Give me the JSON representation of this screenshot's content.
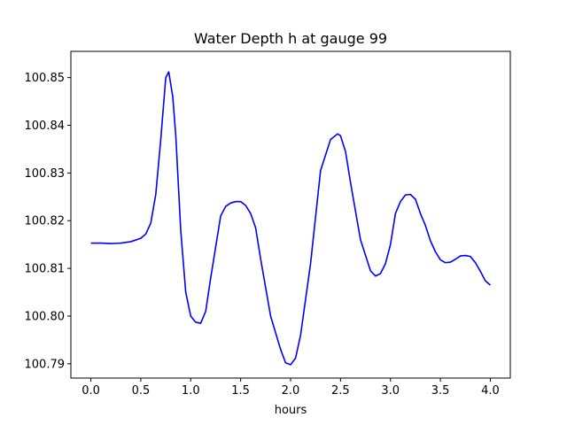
{
  "chart_data": {
    "type": "line",
    "title": "Water Depth h at gauge 99",
    "xlabel": "hours",
    "ylabel": "",
    "xlim": [
      -0.2,
      4.2
    ],
    "ylim": [
      100.787,
      100.8555
    ],
    "xticks": [
      0.0,
      0.5,
      1.0,
      1.5,
      2.0,
      2.5,
      3.0,
      3.5,
      4.0
    ],
    "xtick_labels": [
      "0.0",
      "0.5",
      "1.0",
      "1.5",
      "2.0",
      "2.5",
      "3.0",
      "3.5",
      "4.0"
    ],
    "yticks": [
      100.79,
      100.8,
      100.81,
      100.82,
      100.83,
      100.84,
      100.85
    ],
    "ytick_labels": [
      "100.79",
      "100.80",
      "100.81",
      "100.82",
      "100.83",
      "100.84",
      "100.85"
    ],
    "grid": false,
    "series": [
      {
        "color": "#0000ff",
        "x": [
          0.0,
          0.1,
          0.2,
          0.3,
          0.4,
          0.5,
          0.55,
          0.6,
          0.65,
          0.7,
          0.75,
          0.78,
          0.82,
          0.85,
          0.9,
          0.95,
          1.0,
          1.05,
          1.1,
          1.15,
          1.2,
          1.3,
          1.35,
          1.4,
          1.45,
          1.5,
          1.55,
          1.6,
          1.65,
          1.7,
          1.8,
          1.9,
          1.95,
          2.0,
          2.05,
          2.1,
          2.2,
          2.3,
          2.4,
          2.47,
          2.5,
          2.55,
          2.6,
          2.7,
          2.8,
          2.85,
          2.9,
          2.95,
          3.0,
          3.05,
          3.1,
          3.15,
          3.2,
          3.25,
          3.3,
          3.35,
          3.4,
          3.45,
          3.5,
          3.55,
          3.6,
          3.65,
          3.7,
          3.75,
          3.8,
          3.85,
          3.9,
          3.95,
          4.0
        ],
        "y": [
          100.8153,
          100.8153,
          100.8152,
          100.8153,
          100.8156,
          100.8163,
          100.8172,
          100.8195,
          100.8255,
          100.837,
          100.85,
          100.8512,
          100.846,
          100.838,
          100.818,
          100.805,
          100.8,
          100.7987,
          100.7985,
          100.801,
          100.808,
          100.821,
          100.823,
          100.8237,
          100.824,
          100.824,
          100.8232,
          100.8215,
          100.8185,
          100.812,
          100.8,
          100.793,
          100.7902,
          100.7898,
          100.7912,
          100.796,
          100.811,
          100.8305,
          100.837,
          100.8382,
          100.8378,
          100.8345,
          100.828,
          100.816,
          100.8095,
          100.8084,
          100.8089,
          100.811,
          100.815,
          100.8215,
          100.824,
          100.8254,
          100.8255,
          100.8245,
          100.8215,
          100.819,
          100.8158,
          100.8135,
          100.8118,
          100.8112,
          100.8113,
          100.8119,
          100.8126,
          100.8127,
          100.8125,
          100.8112,
          100.8094,
          100.8074,
          100.8065
        ]
      }
    ]
  }
}
